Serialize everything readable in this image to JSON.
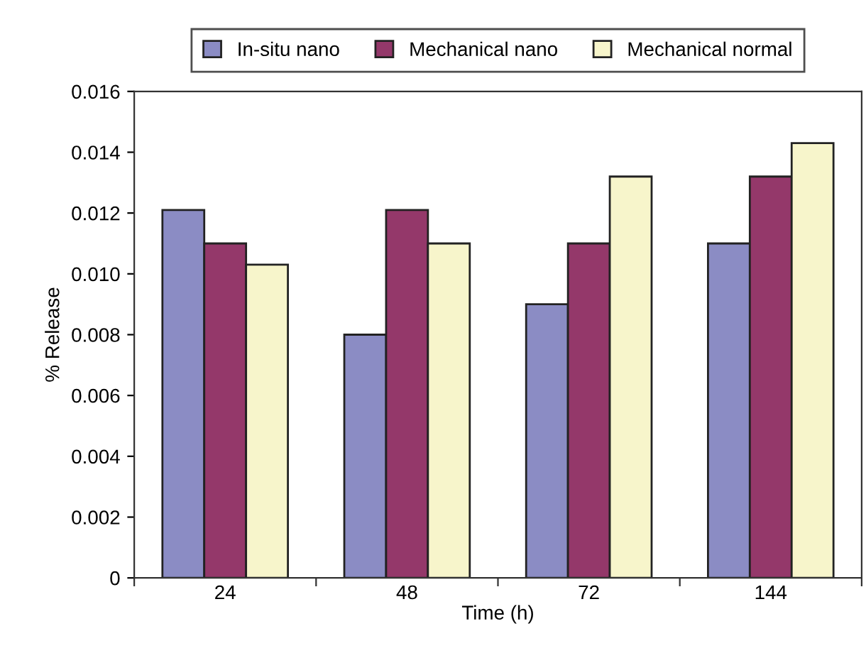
{
  "chart_data": {
    "type": "bar",
    "xlabel": "Time (h)",
    "ylabel": "% Release",
    "categories": [
      "24",
      "48",
      "72",
      "144"
    ],
    "series": [
      {
        "name": "In-situ nano",
        "color": "#8b8cc4",
        "values": [
          0.0121,
          0.008,
          0.009,
          0.011
        ]
      },
      {
        "name": "Mechanical nano",
        "color": "#94386a",
        "values": [
          0.011,
          0.0121,
          0.011,
          0.0132
        ]
      },
      {
        "name": "Mechanical normal",
        "color": "#f7f5cb",
        "values": [
          0.0103,
          0.011,
          0.0132,
          0.0143
        ]
      }
    ],
    "ylim": [
      0,
      0.016
    ],
    "yticks": [
      {
        "value": 0,
        "label": "0"
      },
      0.002,
      0.004,
      0.006,
      0.008,
      {
        "value": 0.01,
        "label": "0.010"
      },
      0.012,
      0.014,
      0.016
    ],
    "legend": "top",
    "grid": false
  }
}
